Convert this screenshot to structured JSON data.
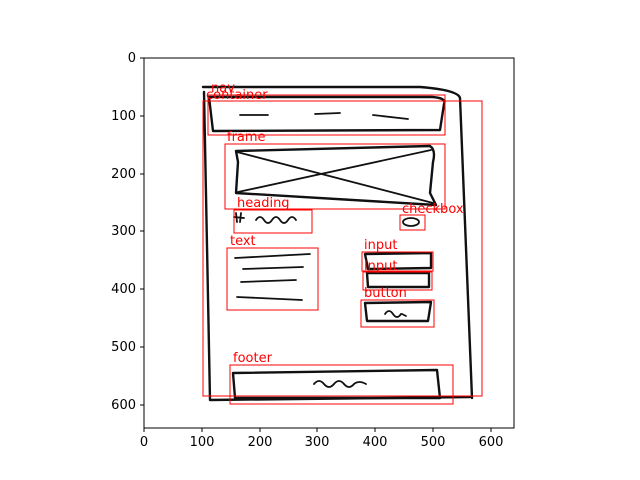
{
  "axes": {
    "x_ticks": [
      "0",
      "100",
      "200",
      "300",
      "400",
      "500",
      "600"
    ],
    "y_ticks": [
      "0",
      "100",
      "200",
      "300",
      "400",
      "500",
      "600"
    ]
  },
  "annotations": {
    "nav": "nav",
    "container": "container",
    "frame": "frame",
    "heading": "heading",
    "checkbox": "checkbox",
    "text": "text",
    "input_1": "input",
    "input_2": "input",
    "button": "button",
    "footer": "footer"
  },
  "colors": {
    "annotation": "#ff0000",
    "sketch": "#111111",
    "axes": "#000000"
  }
}
